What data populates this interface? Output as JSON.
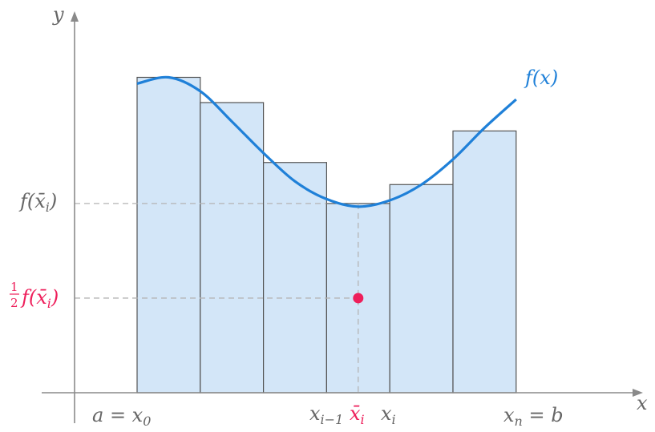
{
  "labels": {
    "y_axis": "y",
    "x_axis": "x",
    "f_label_f": "f",
    "f_label_open": "(",
    "f_label_x": "x",
    "f_label_close": ")",
    "y_tick_f": "f(x̄",
    "y_tick_sub": "i",
    "y_tick_close": ")",
    "half_num": "1",
    "half_den": "2",
    "half_f": "f(x̄",
    "half_sub": "i",
    "half_close": ")",
    "a_eq": "a = x",
    "a_sub": "0",
    "xim1": "x",
    "xim1_sub": "i−1",
    "xbar": "x̄",
    "xbar_sub": "i",
    "xi": "x",
    "xi_sub": "i",
    "xn": "x",
    "xn_sub": "n",
    "xn_eq_b": " = b"
  },
  "colors": {
    "bar_fill": "#d3e6f8",
    "bar_stroke": "#545454",
    "curve": "#1f80d8",
    "accent": "#ee1f5b",
    "axis": "#8a8a8a",
    "guide": "#b4b4b4"
  },
  "chart_data": {
    "type": "bar",
    "bars": [
      {
        "x0": 0,
        "x1": 1,
        "height": 5.0
      },
      {
        "x0": 1,
        "x1": 2,
        "height": 4.6
      },
      {
        "x0": 2,
        "x1": 3,
        "height": 3.65
      },
      {
        "x0": 3,
        "x1": 4,
        "height": 3.0
      },
      {
        "x0": 4,
        "x1": 5,
        "height": 3.3
      },
      {
        "x0": 5,
        "x1": 6,
        "height": 4.15
      }
    ],
    "curve": [
      [
        0,
        4.9
      ],
      [
        0.5,
        5.0
      ],
      [
        1,
        4.78
      ],
      [
        1.5,
        4.3
      ],
      [
        2,
        3.8
      ],
      [
        2.5,
        3.35
      ],
      [
        3,
        3.07
      ],
      [
        3.5,
        2.95
      ],
      [
        4,
        3.05
      ],
      [
        4.5,
        3.3
      ],
      [
        5,
        3.7
      ],
      [
        5.5,
        4.2
      ],
      [
        6,
        4.65
      ]
    ],
    "highlight": {
      "bar_index": 3,
      "xbar": 3.5,
      "value": 3.0,
      "half_value": 1.5
    },
    "xlim": [
      -1,
      9
    ],
    "ylim": [
      0,
      6.2
    ]
  }
}
